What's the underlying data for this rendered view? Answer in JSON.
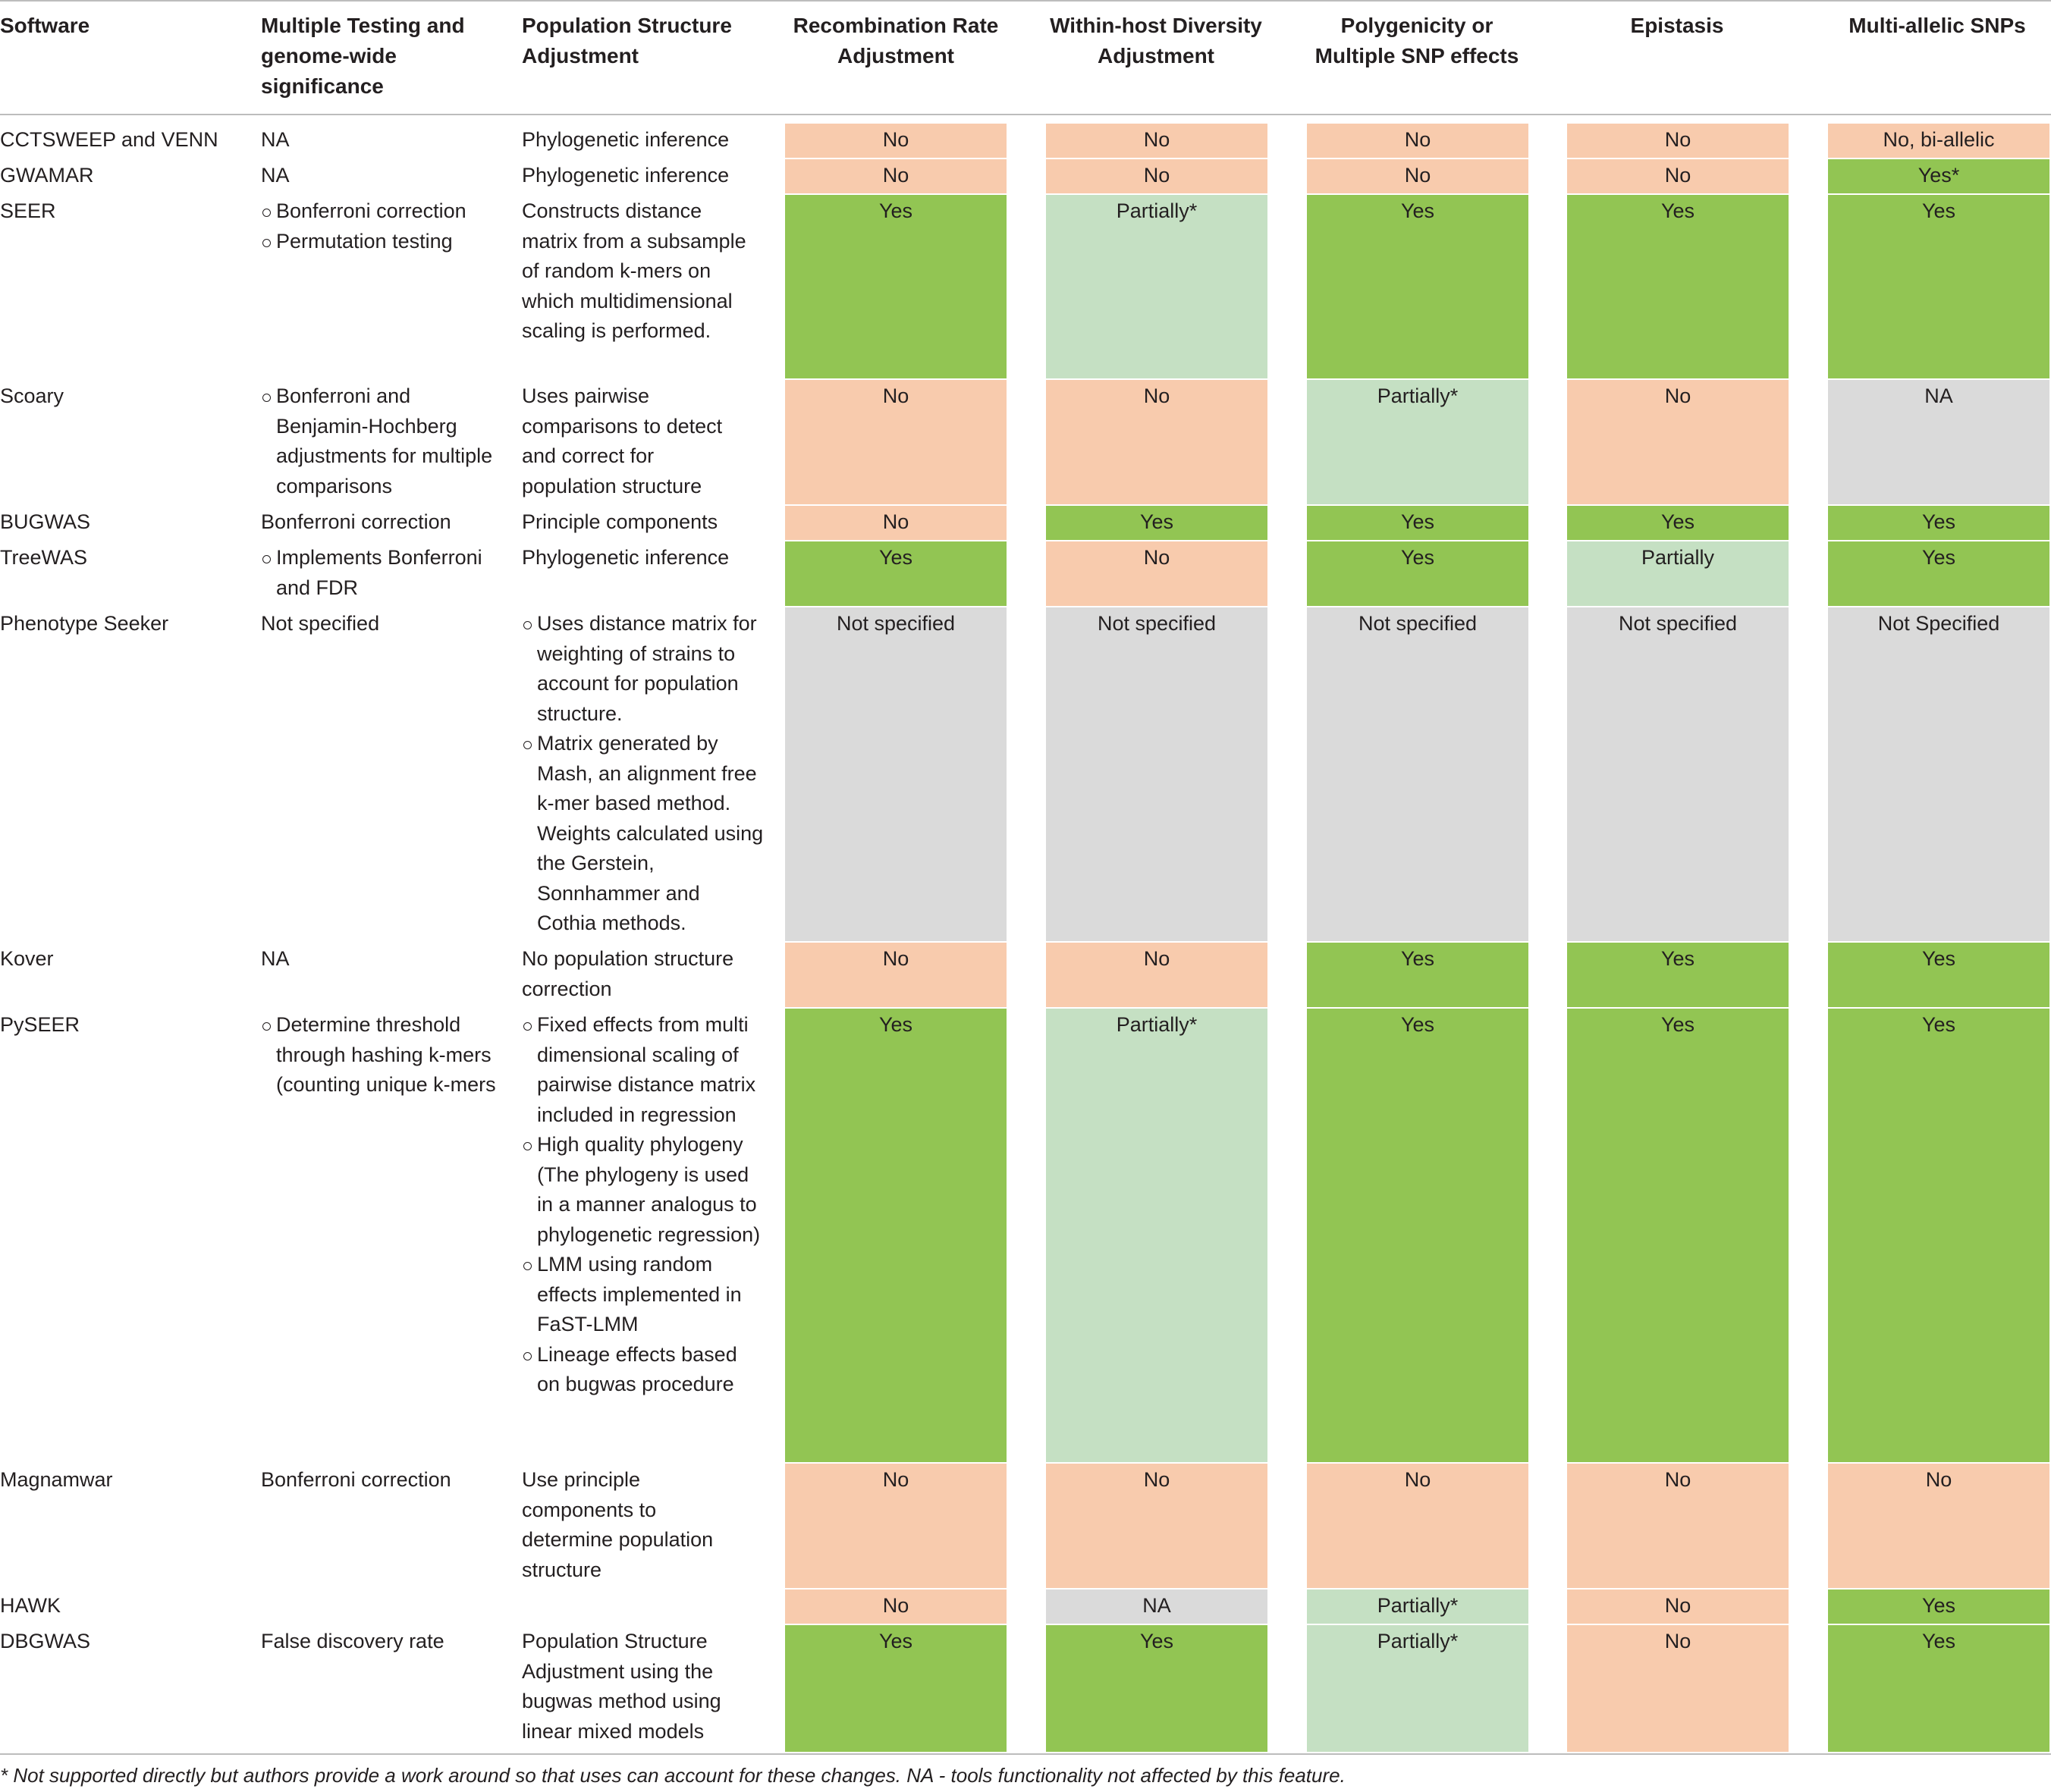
{
  "headers": [
    "Software",
    "Multiple Testing and genome-wide significance",
    "Population Structure Adjustment",
    "Recombination Rate Adjustment",
    "Within-host Diversity Adjustment",
    "Polygenicity or Multiple SNP effects",
    "Epistasis",
    "Multi-allelic SNPs"
  ],
  "header_lines": {
    "c0": [
      "Software"
    ],
    "c1": [
      "Multiple Testing and",
      "genome-wide",
      "significance"
    ],
    "c2": [
      "Population Structure",
      "Adjustment"
    ],
    "c3": [
      "Recombination Rate",
      "Adjustment"
    ],
    "c4": [
      "Within-host Diversity",
      "Adjustment"
    ],
    "c5": [
      "Polygenicity or",
      "Multiple SNP effects"
    ],
    "c6": [
      "Epistasis"
    ],
    "c7": [
      "Multi-allelic SNPs"
    ]
  },
  "status_colors": {
    "No": "#f8cbad",
    "Yes": "#92c553",
    "Partially": "#c5e0c3",
    "NA / Not specified": "#dadada"
  },
  "rows": [
    {
      "software": "CCTSWEEP and VENN",
      "testing": [
        "NA"
      ],
      "testing_bullets": false,
      "pop": [
        "Phylogenetic inference"
      ],
      "pop_bullets": false,
      "features": [
        {
          "label": "No",
          "status": "no"
        },
        {
          "label": "No",
          "status": "no"
        },
        {
          "label": "No",
          "status": "no"
        },
        {
          "label": "No",
          "status": "no"
        },
        {
          "label": "No, bi-allelic",
          "status": "no"
        }
      ]
    },
    {
      "software": "GWAMAR",
      "testing": [
        "NA"
      ],
      "testing_bullets": false,
      "pop": [
        "Phylogenetic inference"
      ],
      "pop_bullets": false,
      "features": [
        {
          "label": "No",
          "status": "no"
        },
        {
          "label": "No",
          "status": "no"
        },
        {
          "label": "No",
          "status": "no"
        },
        {
          "label": "No",
          "status": "no"
        },
        {
          "label": "Yes*",
          "status": "yes"
        }
      ]
    },
    {
      "software": "SEER",
      "testing": [
        "Bonferroni correction",
        "Permutation testing"
      ],
      "testing_bullets": true,
      "pop": [
        "Constructs distance matrix from a subsample of random k-mers on which multidimensional scaling is performed."
      ],
      "pop_bullets": false,
      "features": [
        {
          "label": "Yes",
          "status": "yes"
        },
        {
          "label": "Partially*",
          "status": "par"
        },
        {
          "label": "Yes",
          "status": "yes"
        },
        {
          "label": "Yes",
          "status": "yes"
        },
        {
          "label": "Yes",
          "status": "yes"
        }
      ]
    },
    {
      "software": "Scoary",
      "testing": [
        "Bonferroni and Benjamin-Hochberg adjustments for multiple comparisons"
      ],
      "testing_bullets": true,
      "pop": [
        "Uses pairwise comparisons to detect and correct for population structure"
      ],
      "pop_bullets": false,
      "features": [
        {
          "label": "No",
          "status": "no"
        },
        {
          "label": "No",
          "status": "no"
        },
        {
          "label": "Partially*",
          "status": "par"
        },
        {
          "label": "No",
          "status": "no"
        },
        {
          "label": "NA",
          "status": "gray"
        }
      ]
    },
    {
      "software": "BUGWAS",
      "testing": [
        "Bonferroni correction"
      ],
      "testing_bullets": false,
      "pop": [
        "Principle components"
      ],
      "pop_bullets": false,
      "features": [
        {
          "label": "No",
          "status": "no"
        },
        {
          "label": "Yes",
          "status": "yes"
        },
        {
          "label": "Yes",
          "status": "yes"
        },
        {
          "label": "Yes",
          "status": "yes"
        },
        {
          "label": "Yes",
          "status": "yes"
        }
      ]
    },
    {
      "software": "TreeWAS",
      "testing": [
        "Implements Bonferroni and FDR"
      ],
      "testing_bullets": true,
      "pop": [
        "Phylogenetic inference"
      ],
      "pop_bullets": false,
      "features": [
        {
          "label": "Yes",
          "status": "yes"
        },
        {
          "label": "No",
          "status": "no"
        },
        {
          "label": "Yes",
          "status": "yes"
        },
        {
          "label": "Partially",
          "status": "par"
        },
        {
          "label": "Yes",
          "status": "yes"
        }
      ]
    },
    {
      "software": "Phenotype Seeker",
      "testing": [
        "Not specified"
      ],
      "testing_bullets": false,
      "pop": [
        "Uses distance matrix for weighting of strains to account for population structure.",
        "Matrix generated by Mash, an alignment free k-mer based method. Weights calculated using the Gerstein, Sonnhammer and Cothia methods."
      ],
      "pop_bullets": true,
      "features": [
        {
          "label": "Not specified",
          "status": "gray"
        },
        {
          "label": "Not specified",
          "status": "gray"
        },
        {
          "label": "Not specified",
          "status": "gray"
        },
        {
          "label": "Not specified",
          "status": "gray"
        },
        {
          "label": "Not Specified",
          "status": "gray"
        }
      ]
    },
    {
      "software": "Kover",
      "testing": [
        "NA"
      ],
      "testing_bullets": false,
      "pop": [
        "No population structure correction"
      ],
      "pop_bullets": false,
      "features": [
        {
          "label": "No",
          "status": "no"
        },
        {
          "label": "No",
          "status": "no"
        },
        {
          "label": "Yes",
          "status": "yes"
        },
        {
          "label": "Yes",
          "status": "yes"
        },
        {
          "label": "Yes",
          "status": "yes"
        }
      ]
    },
    {
      "software": "PySEER",
      "testing": [
        "Determine threshold through hashing k-mers (counting unique k-mers"
      ],
      "testing_bullets": true,
      "pop": [
        "Fixed effects from multi dimensional scaling of pairwise distance matrix included in regression",
        "High quality phylogeny (The phylogeny is used in a manner analogus to phylogenetic regression)",
        "LMM using random effects implemented in FaST-LMM",
        "Lineage effects based on bugwas procedure"
      ],
      "pop_bullets": true,
      "features": [
        {
          "label": "Yes",
          "status": "yes"
        },
        {
          "label": "Partially*",
          "status": "par"
        },
        {
          "label": "Yes",
          "status": "yes"
        },
        {
          "label": "Yes",
          "status": "yes"
        },
        {
          "label": "Yes",
          "status": "yes"
        }
      ]
    },
    {
      "software": "Magnamwar",
      "testing": [
        "Bonferroni correction"
      ],
      "testing_bullets": false,
      "pop": [
        "Use principle components to determine population structure"
      ],
      "pop_bullets": false,
      "features": [
        {
          "label": "No",
          "status": "no"
        },
        {
          "label": "No",
          "status": "no"
        },
        {
          "label": "No",
          "status": "no"
        },
        {
          "label": "No",
          "status": "no"
        },
        {
          "label": "No",
          "status": "no"
        }
      ]
    },
    {
      "software": "HAWK",
      "testing": [],
      "testing_bullets": false,
      "pop": [],
      "pop_bullets": false,
      "features": [
        {
          "label": "No",
          "status": "no"
        },
        {
          "label": "NA",
          "status": "gray"
        },
        {
          "label": "Partially*",
          "status": "par"
        },
        {
          "label": "No",
          "status": "no"
        },
        {
          "label": "Yes",
          "status": "yes"
        }
      ]
    },
    {
      "software": "DBGWAS",
      "testing": [
        "False discovery rate"
      ],
      "testing_bullets": false,
      "pop": [
        "Population Structure Adjustment using the bugwas method using linear mixed models"
      ],
      "pop_bullets": false,
      "features": [
        {
          "label": "Yes",
          "status": "yes"
        },
        {
          "label": "Yes",
          "status": "yes"
        },
        {
          "label": "Partially*",
          "status": "par"
        },
        {
          "label": "No",
          "status": "no"
        },
        {
          "label": "Yes",
          "status": "yes"
        }
      ]
    }
  ],
  "footnote": "* Not supported directly but authors provide a work around so that uses can account for these changes. NA - tools functionality not affected by this feature."
}
